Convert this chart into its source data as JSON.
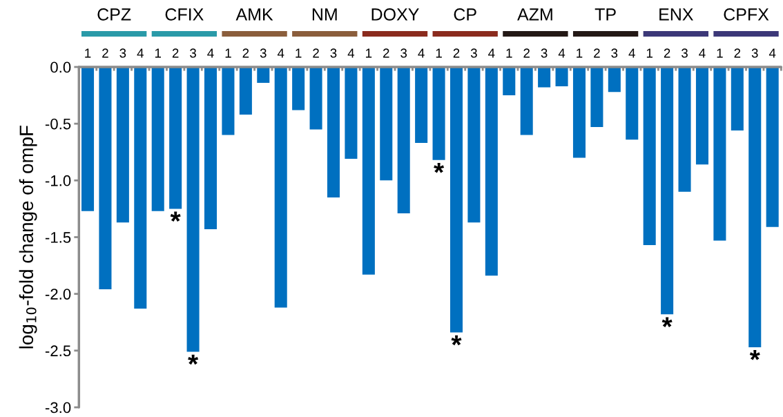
{
  "chart_data": {
    "type": "bar",
    "ylabel": "log$_{10}$-fold change of ompF",
    "categories": [
      "1",
      "2",
      "3",
      "4",
      "1",
      "2",
      "3",
      "4",
      "1",
      "2",
      "3",
      "4",
      "1",
      "2",
      "3",
      "4",
      "1",
      "2",
      "3",
      "4",
      "1",
      "2",
      "3",
      "4",
      "1",
      "2",
      "3",
      "4",
      "1",
      "2",
      "3",
      "4",
      "1",
      "2",
      "3",
      "4",
      "1",
      "2",
      "3",
      "4"
    ],
    "series": [
      {
        "name": "CPZ",
        "color": "#0070c0",
        "values": [
          -1.27,
          -1.96,
          -1.37,
          -2.13,
          null,
          null,
          null,
          null,
          null,
          null,
          null,
          null,
          null,
          null,
          null,
          null,
          null,
          null,
          null,
          null,
          null,
          null,
          null,
          null,
          null,
          null,
          null,
          null,
          null,
          null,
          null,
          null,
          null,
          null,
          null,
          null,
          null,
          null,
          null,
          null
        ]
      },
      {
        "name": "CFIX",
        "color": "#0070c0",
        "values": [
          null,
          null,
          null,
          null,
          -1.27,
          -1.25,
          -2.51,
          -1.43,
          null,
          null,
          null,
          null,
          null,
          null,
          null,
          null,
          null,
          null,
          null,
          null,
          null,
          null,
          null,
          null,
          null,
          null,
          null,
          null,
          null,
          null,
          null,
          null,
          null,
          null,
          null,
          null,
          null,
          null,
          null,
          null
        ],
        "value_labels": [
          null,
          null,
          null,
          null,
          null,
          "*",
          "*",
          null,
          null,
          null,
          null,
          null,
          null,
          null,
          null,
          null,
          null,
          null,
          null,
          null,
          null,
          null,
          null,
          null,
          null,
          null,
          null,
          null,
          null,
          null,
          null,
          null,
          null,
          null,
          null,
          null,
          null,
          null,
          null,
          null
        ]
      },
      {
        "name": "AMK",
        "color": "#0070c0",
        "values": [
          null,
          null,
          null,
          null,
          null,
          null,
          null,
          null,
          -0.6,
          -0.42,
          -0.14,
          -2.12,
          null,
          null,
          null,
          null,
          null,
          null,
          null,
          null,
          null,
          null,
          null,
          null,
          null,
          null,
          null,
          null,
          null,
          null,
          null,
          null,
          null,
          null,
          null,
          null,
          null,
          null,
          null,
          null
        ]
      },
      {
        "name": "NM",
        "color": "#0070c0",
        "values": [
          null,
          null,
          null,
          null,
          null,
          null,
          null,
          null,
          null,
          null,
          null,
          null,
          -0.38,
          -0.55,
          -1.15,
          -0.81,
          null,
          null,
          null,
          null,
          null,
          null,
          null,
          null,
          null,
          null,
          null,
          null,
          null,
          null,
          null,
          null,
          null,
          null,
          null,
          null,
          null,
          null,
          null,
          null
        ]
      },
      {
        "name": "DOXY",
        "color": "#0070c0",
        "values": [
          null,
          null,
          null,
          null,
          null,
          null,
          null,
          null,
          null,
          null,
          null,
          null,
          null,
          null,
          null,
          null,
          -1.83,
          -1.0,
          -1.29,
          -0.67,
          null,
          null,
          null,
          null,
          null,
          null,
          null,
          null,
          null,
          null,
          null,
          null,
          null,
          null,
          null,
          null,
          null,
          null,
          null,
          null
        ]
      },
      {
        "name": "CP",
        "color": "#0070c0",
        "values": [
          null,
          null,
          null,
          null,
          null,
          null,
          null,
          null,
          null,
          null,
          null,
          null,
          null,
          null,
          null,
          null,
          null,
          null,
          null,
          null,
          -0.82,
          -2.34,
          -1.37,
          -1.84,
          null,
          null,
          null,
          null,
          null,
          null,
          null,
          null,
          null,
          null,
          null,
          null,
          null,
          null,
          null,
          null
        ],
        "value_labels": [
          null,
          null,
          null,
          null,
          null,
          null,
          null,
          null,
          null,
          null,
          null,
          null,
          null,
          null,
          null,
          null,
          null,
          null,
          null,
          null,
          "*",
          "*",
          null,
          null,
          null,
          null,
          null,
          null,
          null,
          null,
          null,
          null,
          null,
          null,
          null,
          null,
          null,
          null,
          null,
          null
        ]
      },
      {
        "name": "AZM",
        "color": "#0070c0",
        "values": [
          null,
          null,
          null,
          null,
          null,
          null,
          null,
          null,
          null,
          null,
          null,
          null,
          null,
          null,
          null,
          null,
          null,
          null,
          null,
          null,
          null,
          null,
          null,
          null,
          -0.25,
          -0.6,
          -0.18,
          -0.17,
          null,
          null,
          null,
          null,
          null,
          null,
          null,
          null,
          null,
          null,
          null,
          null
        ]
      },
      {
        "name": "TP",
        "color": "#0070c0",
        "values": [
          null,
          null,
          null,
          null,
          null,
          null,
          null,
          null,
          null,
          null,
          null,
          null,
          null,
          null,
          null,
          null,
          null,
          null,
          null,
          null,
          null,
          null,
          null,
          null,
          null,
          null,
          null,
          null,
          -0.8,
          -0.53,
          -0.22,
          -0.64,
          null,
          null,
          null,
          null,
          null,
          null,
          null,
          null
        ]
      },
      {
        "name": "ENX",
        "color": "#0070c0",
        "values": [
          null,
          null,
          null,
          null,
          null,
          null,
          null,
          null,
          null,
          null,
          null,
          null,
          null,
          null,
          null,
          null,
          null,
          null,
          null,
          null,
          null,
          null,
          null,
          null,
          null,
          null,
          null,
          null,
          null,
          null,
          null,
          null,
          -1.57,
          -2.18,
          -1.1,
          -0.86,
          null,
          null,
          null,
          null
        ],
        "value_labels": [
          null,
          null,
          null,
          null,
          null,
          null,
          null,
          null,
          null,
          null,
          null,
          null,
          null,
          null,
          null,
          null,
          null,
          null,
          null,
          null,
          null,
          null,
          null,
          null,
          null,
          null,
          null,
          null,
          null,
          null,
          null,
          null,
          null,
          "*",
          null,
          null,
          null,
          null,
          null,
          null
        ]
      },
      {
        "name": "CPFX",
        "color": "#0070c0",
        "values": [
          null,
          null,
          null,
          null,
          null,
          null,
          null,
          null,
          null,
          null,
          null,
          null,
          null,
          null,
          null,
          null,
          null,
          null,
          null,
          null,
          null,
          null,
          null,
          null,
          null,
          null,
          null,
          null,
          null,
          null,
          null,
          null,
          null,
          null,
          null,
          null,
          -1.53,
          -0.56,
          -2.47,
          -1.41
        ],
        "value_labels": [
          null,
          null,
          null,
          null,
          null,
          null,
          null,
          null,
          null,
          null,
          null,
          null,
          null,
          null,
          null,
          null,
          null,
          null,
          null,
          null,
          null,
          null,
          null,
          null,
          null,
          null,
          null,
          null,
          null,
          null,
          null,
          null,
          null,
          null,
          null,
          null,
          null,
          null,
          "*",
          null
        ]
      }
    ],
    "ylim": [
      -3.0,
      0.0
    ],
    "yticks": [
      {
        "value": 0.0,
        "label": "0.0"
      },
      {
        "value": -0.5,
        "label": "-0.5"
      },
      {
        "value": -1.0,
        "label": "-1.0"
      },
      {
        "value": -1.5,
        "label": "-1.5"
      },
      {
        "value": -2.0,
        "label": "-2.0"
      },
      {
        "value": -2.5,
        "label": "-2.5"
      },
      {
        "value": -3.0,
        "label": "-3.0"
      }
    ],
    "grid": false,
    "legend": false
  }
}
